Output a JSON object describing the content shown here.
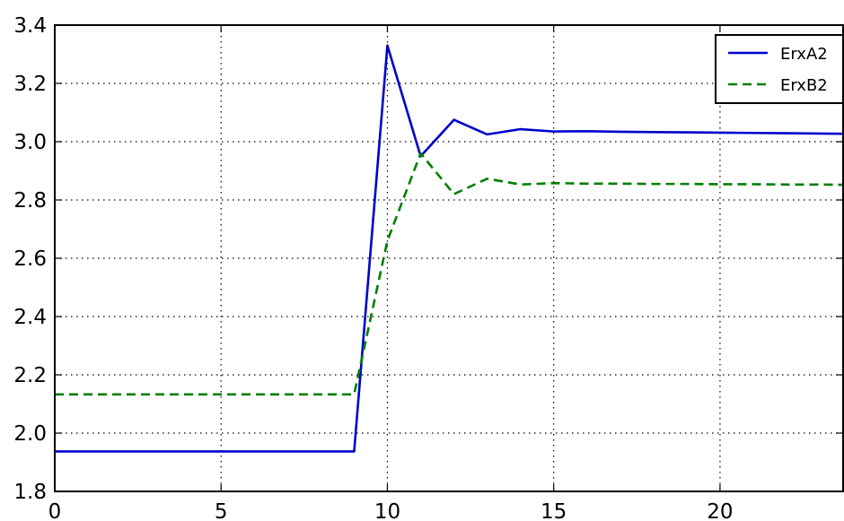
{
  "chart_data": {
    "type": "line",
    "title": "",
    "xlabel": "",
    "ylabel": "",
    "xlim": [
      0,
      23.7
    ],
    "ylim": [
      1.8,
      3.4
    ],
    "xticks": [
      0,
      5,
      10,
      15,
      20
    ],
    "yticks": [
      1.8,
      2.0,
      2.2,
      2.4,
      2.6,
      2.8,
      3.0,
      3.2,
      3.4
    ],
    "x_tick_labels": [
      "0",
      "5",
      "10",
      "15",
      "20"
    ],
    "y_tick_labels": [
      "1.8",
      "2.0",
      "2.2",
      "2.4",
      "2.6",
      "2.8",
      "3.0",
      "3.2",
      "3.4"
    ],
    "grid": true,
    "legend_position": "top-right",
    "x": [
      0,
      1,
      2,
      3,
      4,
      5,
      6,
      7,
      8,
      9,
      10,
      11,
      12,
      13,
      14,
      15,
      16,
      17,
      18,
      19,
      20,
      21,
      22,
      23,
      23.7
    ],
    "series": [
      {
        "name": "ErxA2",
        "color": "#0000cc",
        "linestyle": "solid",
        "values": [
          1.937,
          1.937,
          1.937,
          1.937,
          1.937,
          1.937,
          1.937,
          1.937,
          1.937,
          1.937,
          3.33,
          2.95,
          3.075,
          3.025,
          3.043,
          3.035,
          3.036,
          3.034,
          3.033,
          3.032,
          3.031,
          3.03,
          3.029,
          3.028,
          3.027
        ]
      },
      {
        "name": "ErxB2",
        "color": "#007f00",
        "linestyle": "dashed",
        "values": [
          2.133,
          2.133,
          2.133,
          2.133,
          2.133,
          2.133,
          2.133,
          2.133,
          2.133,
          2.133,
          2.66,
          2.96,
          2.82,
          2.873,
          2.853,
          2.858,
          2.856,
          2.856,
          2.855,
          2.855,
          2.854,
          2.854,
          2.853,
          2.853,
          2.852
        ]
      }
    ]
  }
}
